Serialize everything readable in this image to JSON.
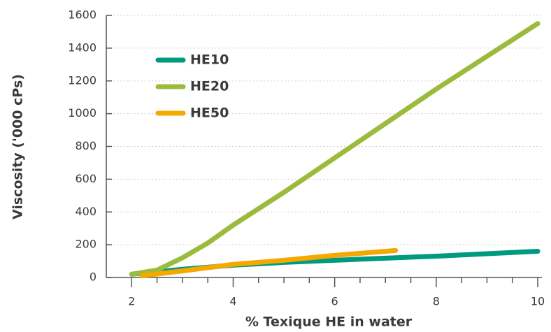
{
  "chart_data": {
    "type": "line",
    "x_label": "% Texique HE in water",
    "y_label": "Viscosity ('000 cPs)",
    "xlim": [
      1.5,
      10
    ],
    "xticks": [
      2,
      4,
      6,
      8,
      10
    ],
    "x_minor_ticks": [
      2.5,
      3,
      3.5,
      4.5,
      5,
      5.5,
      6.5,
      7,
      7.5,
      8.5,
      9,
      9.5
    ],
    "ylim": [
      0,
      1600
    ],
    "yticks": [
      0,
      200,
      400,
      600,
      800,
      1000,
      1200,
      1400,
      1600
    ],
    "grid": true,
    "legend": "upper left",
    "series": [
      {
        "name": "HE10",
        "color": "#009a80",
        "x": [
          2,
          3,
          4,
          5,
          6,
          7,
          8,
          9,
          10
        ],
        "values": [
          20,
          50,
          75,
          92,
          105,
          118,
          130,
          145,
          160
        ]
      },
      {
        "name": "HE20",
        "color": "#9bbb3c",
        "x": [
          2,
          2.5,
          3,
          3.5,
          4,
          5,
          6,
          7,
          8,
          9,
          10
        ],
        "values": [
          20,
          45,
          120,
          210,
          320,
          520,
          730,
          940,
          1150,
          1350,
          1550
        ]
      },
      {
        "name": "HE50",
        "color": "#f5a800",
        "x": [
          2.2,
          3,
          4,
          5,
          6,
          7.2
        ],
        "values": [
          10,
          40,
          80,
          105,
          135,
          165
        ]
      }
    ]
  }
}
